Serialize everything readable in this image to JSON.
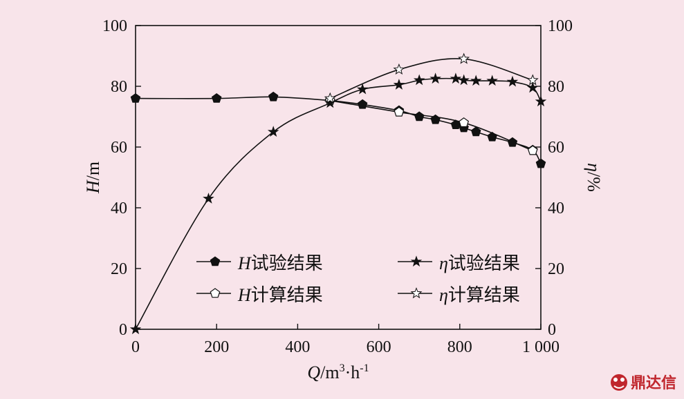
{
  "chart_data": {
    "type": "line",
    "xlabel": {
      "symbol": "Q",
      "unit": "/m",
      "sup1": "3",
      "mid": "·h",
      "sup2": "-1"
    },
    "ylabel_left": {
      "symbol": "H",
      "unit": "/m"
    },
    "ylabel_right": {
      "symbol": "η",
      "unit": "/%"
    },
    "xlim": [
      0,
      1000
    ],
    "ylim_left": [
      0,
      100
    ],
    "ylim_right": [
      0,
      100
    ],
    "x_ticks": [
      0,
      200,
      400,
      600,
      800,
      1000
    ],
    "x_tick_labels": [
      "0",
      "200",
      "400",
      "600",
      "800",
      "1 000"
    ],
    "y_ticks_left": [
      "0",
      "20",
      "40",
      "60",
      "80",
      "100"
    ],
    "y_ticks_right": [
      "0",
      "20",
      "40",
      "60",
      "80",
      "100"
    ],
    "series": [
      {
        "name": "H试验结果",
        "symbol": "H",
        "label": "试验结果",
        "axis": "left",
        "marker": "pentagon-filled",
        "points": [
          [
            0,
            76
          ],
          [
            200,
            76
          ],
          [
            340,
            76.5
          ],
          [
            480,
            75.3
          ],
          [
            560,
            74
          ],
          [
            650,
            72
          ],
          [
            700,
            70
          ],
          [
            740,
            69
          ],
          [
            790,
            67.3
          ],
          [
            810,
            66.3
          ],
          [
            840,
            65
          ],
          [
            880,
            63.3
          ],
          [
            930,
            61.5
          ],
          [
            980,
            59
          ],
          [
            1000,
            54.5
          ]
        ]
      },
      {
        "name": "H计算结果",
        "symbol": "H",
        "label": "计算结果",
        "axis": "left",
        "marker": "pentagon-open",
        "points": [
          [
            480,
            75.3
          ],
          [
            650,
            71.5
          ],
          [
            810,
            68
          ],
          [
            980,
            58.8
          ]
        ]
      },
      {
        "name": "η试验结果",
        "symbol": "η",
        "label": "试验结果",
        "axis": "right",
        "marker": "star-filled",
        "points": [
          [
            0,
            0
          ],
          [
            180,
            43
          ],
          [
            340,
            65
          ],
          [
            480,
            74.5
          ],
          [
            560,
            79
          ],
          [
            650,
            80.5
          ],
          [
            700,
            82
          ],
          [
            740,
            82.5
          ],
          [
            790,
            82.5
          ],
          [
            810,
            82
          ],
          [
            840,
            81.8
          ],
          [
            880,
            81.8
          ],
          [
            930,
            81.5
          ],
          [
            980,
            79.5
          ],
          [
            1000,
            75
          ]
        ]
      },
      {
        "name": "η计算结果",
        "symbol": "η",
        "label": "计算结果",
        "axis": "right",
        "marker": "star-open",
        "points": [
          [
            480,
            76
          ],
          [
            650,
            85.5
          ],
          [
            810,
            89
          ],
          [
            980,
            82
          ]
        ]
      }
    ],
    "legend_position": "lower-center"
  },
  "watermark": "鼎达信",
  "colors": {
    "background": "#f8e4ea",
    "ink": "#111111",
    "watermark": "#c0262d"
  }
}
